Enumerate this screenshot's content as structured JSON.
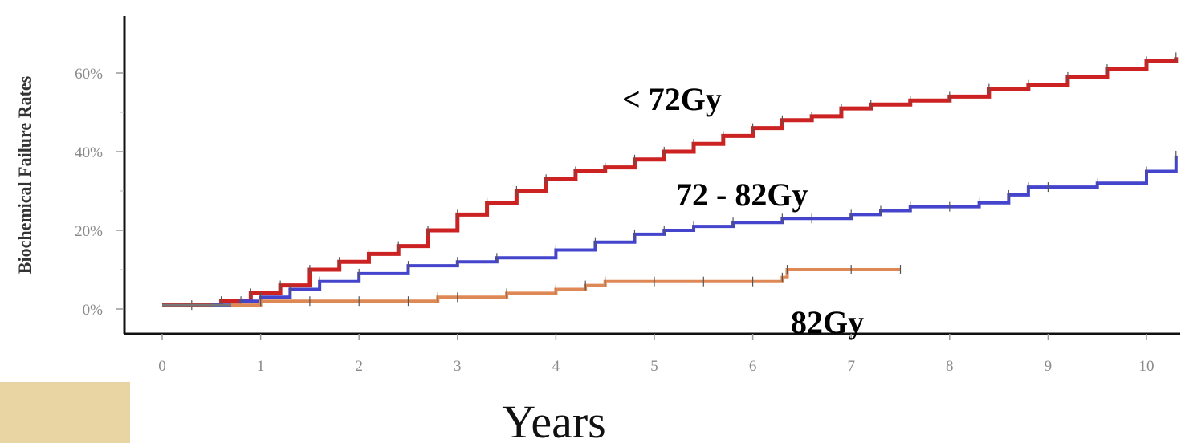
{
  "chart_data": {
    "type": "line",
    "title": "",
    "xlabel": "Years",
    "ylabel": "Biochemical Failure Rates",
    "xlim": [
      0,
      10.3
    ],
    "ylim": [
      -0.06,
      0.72
    ],
    "xticks": [
      0,
      1,
      2,
      3,
      4,
      5,
      6,
      7,
      8,
      9,
      10
    ],
    "yticks": [
      0,
      0.2,
      0.4,
      0.6
    ],
    "yticklabels": [
      "0%",
      "20%",
      "40%",
      "60%"
    ],
    "grid": false,
    "legend": "none",
    "series": [
      {
        "name": "< 72Gy",
        "color": "#cc2222",
        "x": [
          0,
          0.3,
          0.6,
          0.9,
          1.2,
          1.5,
          1.8,
          2.1,
          2.4,
          2.7,
          3.0,
          3.3,
          3.6,
          3.9,
          4.2,
          4.5,
          4.8,
          5.1,
          5.4,
          5.7,
          6.0,
          6.3,
          6.6,
          6.9,
          7.2,
          7.6,
          8.0,
          8.4,
          8.8,
          9.2,
          9.6,
          10.0,
          10.3
        ],
        "y": [
          0.01,
          0.01,
          0.02,
          0.04,
          0.06,
          0.1,
          0.12,
          0.14,
          0.16,
          0.2,
          0.24,
          0.27,
          0.3,
          0.33,
          0.35,
          0.36,
          0.38,
          0.4,
          0.42,
          0.44,
          0.46,
          0.48,
          0.49,
          0.51,
          0.52,
          0.53,
          0.54,
          0.56,
          0.57,
          0.59,
          0.61,
          0.63,
          0.64
        ]
      },
      {
        "name": "72 - 82Gy",
        "color": "#4444cc",
        "x": [
          0.5,
          0.8,
          1.0,
          1.3,
          1.6,
          2.0,
          2.5,
          3.0,
          3.4,
          4.0,
          4.4,
          4.8,
          5.1,
          5.4,
          5.8,
          6.3,
          6.6,
          7.0,
          7.3,
          7.6,
          8.0,
          8.3,
          8.6,
          8.8,
          9.0,
          9.5,
          10.0,
          10.3
        ],
        "y": [
          0.01,
          0.02,
          0.03,
          0.05,
          0.07,
          0.09,
          0.11,
          0.12,
          0.13,
          0.15,
          0.17,
          0.19,
          0.2,
          0.21,
          0.22,
          0.23,
          0.23,
          0.24,
          0.25,
          0.26,
          0.26,
          0.27,
          0.29,
          0.31,
          0.31,
          0.32,
          0.35,
          0.39
        ]
      },
      {
        "name": "82Gy",
        "color": "#dd8855",
        "x": [
          0.7,
          1.0,
          1.5,
          2.0,
          2.5,
          2.8,
          3.0,
          3.5,
          4.0,
          4.3,
          4.5,
          5.0,
          5.5,
          6.0,
          6.3,
          6.35,
          7.0,
          7.5
        ],
        "y": [
          0.01,
          0.02,
          0.02,
          0.02,
          0.02,
          0.03,
          0.03,
          0.04,
          0.05,
          0.06,
          0.07,
          0.07,
          0.07,
          0.07,
          0.08,
          0.1,
          0.1,
          0.1
        ]
      }
    ]
  }
}
